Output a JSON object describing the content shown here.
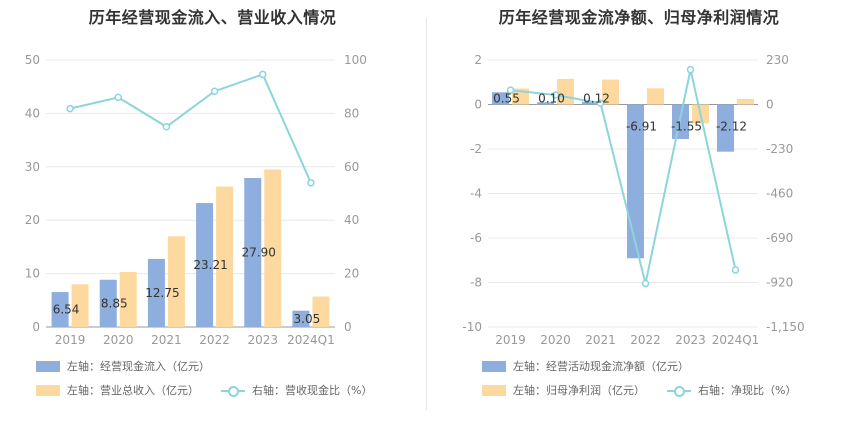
{
  "colors": {
    "bar_primary": "#8eaedd",
    "bar_secondary": "#fdd9a0",
    "line": "#8bd5dc",
    "axis_text": "#999999",
    "grid": "#e8e8e8",
    "label_text": "#333333"
  },
  "chart_data": [
    {
      "type": "bar",
      "title": "历年经营现金流入、营业收入情况",
      "categories": [
        "2019",
        "2020",
        "2021",
        "2022",
        "2023",
        "2024Q1"
      ],
      "left_axis": {
        "ticks": [
          "0",
          "10",
          "20",
          "30",
          "40",
          "50"
        ],
        "range": [
          0,
          50
        ]
      },
      "right_axis": {
        "ticks": [
          "0",
          "20",
          "40",
          "60",
          "80",
          "100"
        ],
        "range": [
          0,
          100
        ]
      },
      "grid": true,
      "legend_position": "bottom-left",
      "series": [
        {
          "name": "左轴：经营现金流入（亿元）",
          "axis": "left",
          "kind": "bar",
          "values": [
            6.54,
            8.85,
            12.75,
            23.21,
            27.9,
            3.05
          ],
          "labels": [
            "6.54",
            "8.85",
            "12.75",
            "23.21",
            "27.90",
            "3.05"
          ]
        },
        {
          "name": "左轴：营业总收入（亿元）",
          "axis": "left",
          "kind": "bar",
          "values": [
            8.0,
            10.3,
            17.0,
            26.3,
            29.5,
            5.7
          ]
        },
        {
          "name": "右轴：营收现金比（%）",
          "axis": "right",
          "kind": "line",
          "values": [
            81.8,
            86.0,
            75.0,
            88.3,
            94.6,
            54.0
          ]
        }
      ]
    },
    {
      "type": "bar",
      "title": "历年经营现金流净额、归母净利润情况",
      "categories": [
        "2019",
        "2020",
        "2021",
        "2022",
        "2023",
        "2024Q1"
      ],
      "left_axis": {
        "ticks": [
          "-10",
          "-8",
          "-6",
          "-4",
          "-2",
          "0",
          "2"
        ],
        "range": [
          -10,
          2
        ]
      },
      "right_axis": {
        "ticks": [
          "-1,150",
          "-920",
          "-690",
          "-460",
          "-230",
          "0",
          "230"
        ],
        "range": [
          -1150,
          230
        ]
      },
      "grid": true,
      "legend_position": "bottom-left",
      "series": [
        {
          "name": "左轴：经营活动现金流净额（亿元）",
          "axis": "left",
          "kind": "bar",
          "values": [
            0.55,
            0.1,
            0.12,
            -6.91,
            -1.55,
            -2.12
          ],
          "labels": [
            "0.55",
            "0.10",
            "0.12",
            "-6.91",
            "-1.55",
            "-2.12"
          ]
        },
        {
          "name": "左轴：归母净利润（亿元）",
          "axis": "left",
          "kind": "bar",
          "values": [
            0.72,
            1.15,
            1.12,
            0.73,
            -0.85,
            0.25
          ]
        },
        {
          "name": "右轴：净现比（%）",
          "axis": "right",
          "kind": "line",
          "values": [
            74,
            49,
            7,
            -925,
            180,
            -855
          ]
        }
      ]
    }
  ]
}
